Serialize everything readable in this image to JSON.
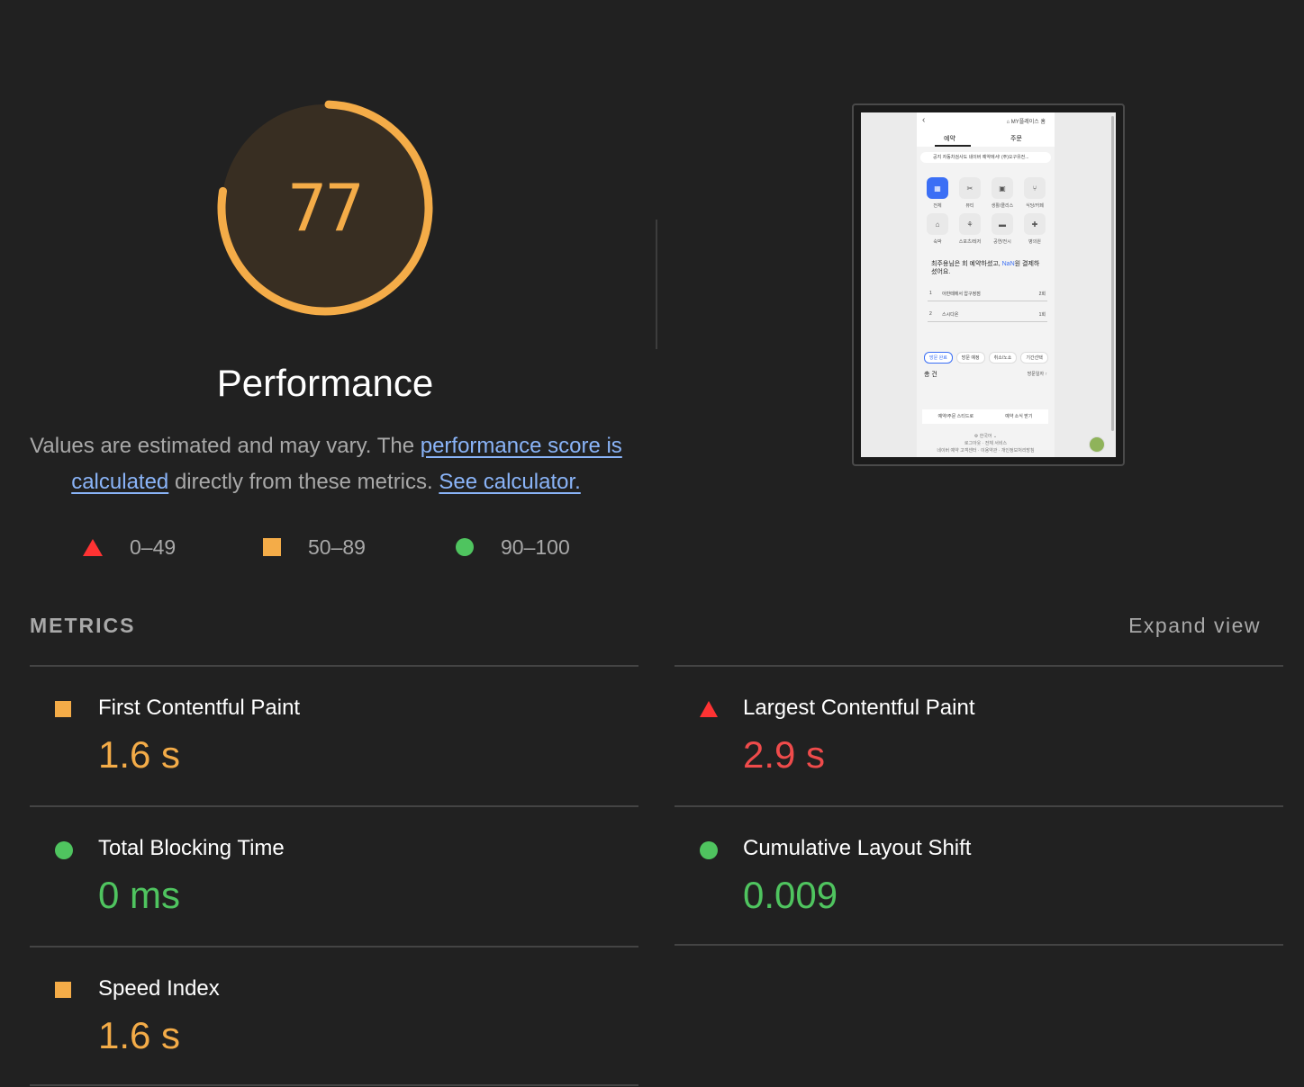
{
  "score": {
    "value": "77",
    "fraction": 0.77,
    "title": "Performance",
    "color": "#f4ac48"
  },
  "description": {
    "prefix": "Values are estimated and may vary. The ",
    "link1": "performance score is calculated",
    "middle": " directly from these metrics. ",
    "link2": "See calculator."
  },
  "legend": [
    {
      "shape": "triangle",
      "label": "0–49",
      "color": "#ef4b4b"
    },
    {
      "shape": "square",
      "label": "50–89",
      "color": "#f4ac48"
    },
    {
      "shape": "circle",
      "label": "90–100",
      "color": "#4fc45f"
    }
  ],
  "thumbnail": {
    "brand": "⌂ MY플레이스 홈",
    "tabs": [
      "예약",
      "주문"
    ],
    "notice": "공지  자동차검사도 네이버 예약에서! (주)오구유전...",
    "categories": [
      "전체",
      "뷰티",
      "생활/클리스",
      "식당/카페",
      "숙박",
      "스포츠/레저",
      "공연/전시",
      "병의원"
    ],
    "summary_prefix": "최주용님은 회 예약하셨고, ",
    "summary_highlight": "NaN",
    "summary_suffix": "원 결제하셨어요.",
    "ranks": [
      {
        "no": "1",
        "name": "아반떼에서 압구정점",
        "count": "2회"
      },
      {
        "no": "2",
        "name": "스시다온",
        "count": "1회"
      }
    ],
    "chips": [
      "방문 완료",
      "방문 예정",
      "취소/노쇼",
      "기간선택"
    ],
    "total": "총 건",
    "sort": "방문일자 ↑",
    "bar": [
      "예약/주문 스티드로",
      "예약 소식 받기"
    ],
    "foot": [
      "⚙ 한국어 ⌄",
      "로그아웃 · 전체 서비스",
      "네이버 예약 고객센터 · 이용약관 · 개인정보처리방침"
    ]
  },
  "metrics": {
    "title": "METRICS",
    "expand": "Expand view",
    "items": [
      {
        "label": "First Contentful Paint",
        "value": "1.6 s",
        "rating": "average"
      },
      {
        "label": "Largest Contentful Paint",
        "value": "2.9 s",
        "rating": "fail"
      },
      {
        "label": "Total Blocking Time",
        "value": "0 ms",
        "rating": "pass"
      },
      {
        "label": "Cumulative Layout Shift",
        "value": "0.009",
        "rating": "pass"
      },
      {
        "label": "Speed Index",
        "value": "1.6 s",
        "rating": "average"
      }
    ]
  },
  "colors": {
    "background": "#212121",
    "fail": "#ef4b4b",
    "average": "#f4ac48",
    "pass": "#4fc45f",
    "link": "#8ab4f8"
  }
}
